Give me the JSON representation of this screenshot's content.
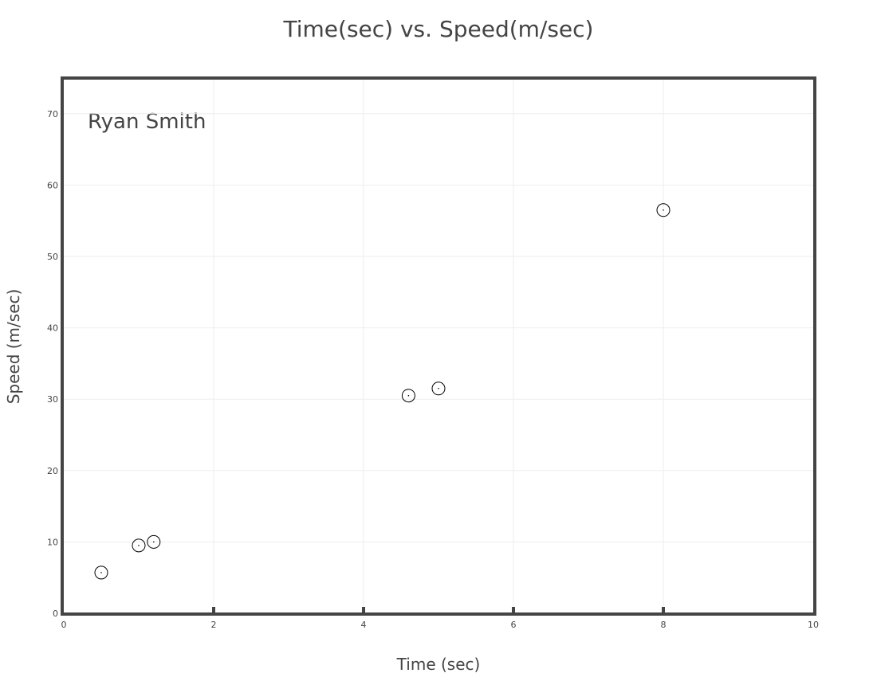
{
  "chart_data": {
    "type": "scatter",
    "title": "Time(sec) vs. Speed(m/sec)",
    "xlabel": "Time (sec)",
    "ylabel": "Speed (m/sec)",
    "annotation": "Ryan Smith",
    "xlim": [
      0,
      10
    ],
    "ylim": [
      0,
      75
    ],
    "x_ticks": [
      0,
      2,
      4,
      6,
      8,
      10
    ],
    "y_ticks": [
      0,
      10,
      20,
      30,
      40,
      50,
      60,
      70
    ],
    "grid": true,
    "points": [
      {
        "x": 0.5,
        "y": 5.7
      },
      {
        "x": 1.0,
        "y": 9.5
      },
      {
        "x": 1.2,
        "y": 10.0
      },
      {
        "x": 4.6,
        "y": 30.5
      },
      {
        "x": 5.0,
        "y": 31.5
      },
      {
        "x": 8.0,
        "y": 56.5
      }
    ],
    "marker": {
      "shape": "open-circle-dot",
      "color": "#000000"
    },
    "colors": {
      "text": "#444444",
      "frame": "#444444",
      "grid": "#eeeeee"
    }
  }
}
